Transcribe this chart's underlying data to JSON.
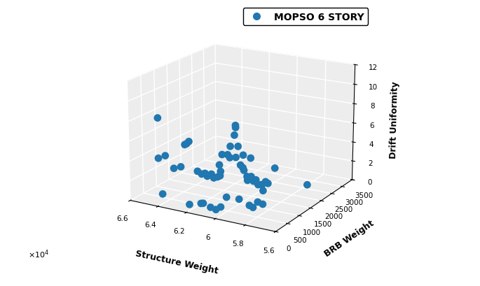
{
  "title": "MOPSO 6 STORY",
  "xlabel": "Structure Weight",
  "ylabel": "BRB Weight",
  "zlabel": "Drift Uniformity",
  "xlim": [
    56000,
    66000
  ],
  "ylim": [
    0,
    3500
  ],
  "zlim": [
    0,
    12
  ],
  "xticks": [
    56000,
    58000,
    60000,
    62000,
    64000,
    66000
  ],
  "xtick_labels": [
    "5.6",
    "5.8",
    "6",
    "6.2",
    "6.4",
    "6.6"
  ],
  "yticks": [
    0,
    500,
    1000,
    1500,
    2000,
    2500,
    3000,
    3500
  ],
  "ytick_labels": [
    "0",
    "500",
    "1000",
    "1500",
    "2000",
    "2500",
    "3000",
    "3500"
  ],
  "zticks": [
    0,
    2,
    4,
    6,
    8,
    10,
    12
  ],
  "ztick_labels": [
    "0",
    "2",
    "4",
    "6",
    "8",
    "10",
    "12"
  ],
  "dot_color": "#2177b0",
  "dot_size": 60,
  "elev": 18,
  "azim": -60,
  "points": [
    [
      64000,
      50,
      8.8
    ],
    [
      64000,
      50,
      4.8
    ],
    [
      63800,
      80,
      1.2
    ],
    [
      63700,
      150,
      5.0
    ],
    [
      63200,
      200,
      3.8
    ],
    [
      62800,
      250,
      4.0
    ],
    [
      62600,
      300,
      6.2
    ],
    [
      62400,
      350,
      6.5
    ],
    [
      62500,
      320,
      6.3
    ],
    [
      62000,
      450,
      3.5
    ],
    [
      61800,
      500,
      3.2
    ],
    [
      61600,
      520,
      3.3
    ],
    [
      61500,
      550,
      3.0
    ],
    [
      61300,
      600,
      3.2
    ],
    [
      61100,
      580,
      2.9
    ],
    [
      60900,
      620,
      3.0
    ],
    [
      60700,
      600,
      3.2
    ],
    [
      60800,
      680,
      3.5
    ],
    [
      61000,
      750,
      4.0
    ],
    [
      60900,
      800,
      5.0
    ],
    [
      60600,
      850,
      5.0
    ],
    [
      60400,
      820,
      4.8
    ],
    [
      60500,
      900,
      5.8
    ],
    [
      60300,
      950,
      6.9
    ],
    [
      60100,
      880,
      7.8
    ],
    [
      60000,
      920,
      5.9
    ],
    [
      60200,
      950,
      4.7
    ],
    [
      59900,
      960,
      4.0
    ],
    [
      59700,
      980,
      3.5
    ],
    [
      59800,
      1000,
      3.7
    ],
    [
      59600,
      1050,
      2.8
    ],
    [
      59500,
      1010,
      2.5
    ],
    [
      59400,
      1080,
      2.6
    ],
    [
      59300,
      1040,
      2.9
    ],
    [
      59100,
      1120,
      2.5
    ],
    [
      59200,
      1080,
      2.4
    ],
    [
      59000,
      1150,
      2.0
    ],
    [
      58800,
      1200,
      2.0
    ],
    [
      58900,
      1230,
      1.9
    ],
    [
      58700,
      1280,
      2.2
    ],
    [
      58600,
      1320,
      2.0
    ],
    [
      62100,
      180,
      0.5
    ],
    [
      61600,
      350,
      0.5
    ],
    [
      61500,
      380,
      0.5
    ],
    [
      61200,
      500,
      0.0
    ],
    [
      60900,
      540,
      -0.2
    ],
    [
      60700,
      620,
      0.0
    ],
    [
      60400,
      680,
      1.0
    ],
    [
      60000,
      960,
      0.5
    ],
    [
      59600,
      1150,
      -0.3
    ],
    [
      59400,
      1180,
      -0.5
    ],
    [
      59200,
      1260,
      0.0
    ],
    [
      58900,
      1300,
      1.2
    ],
    [
      59000,
      1350,
      -0.3
    ],
    [
      61900,
      1950,
      6.2
    ],
    [
      61400,
      1980,
      3.2
    ],
    [
      60900,
      2000,
      3.0
    ],
    [
      59900,
      2450,
      1.6
    ],
    [
      58400,
      2980,
      -0.5
    ]
  ]
}
